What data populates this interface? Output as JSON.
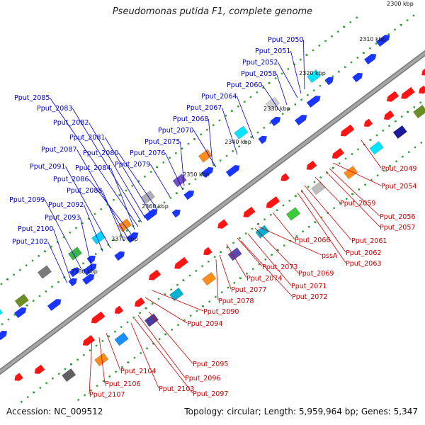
{
  "title": "Pseudomonas putida F1, complete genome",
  "accession": "Accession: NC_009512",
  "summary": "Topology: circular; Length: 5,959,964 bp; Genes: 5,347",
  "colors": {
    "forward": "#0000cc",
    "reverse": "#cc0000",
    "backbone": "#a6a6a6",
    "tick": "#2a8a2a",
    "dot": "#39a339"
  },
  "ticks": [
    "2300 kbp",
    "2310 kbp",
    "2320 kbp",
    "2330 kbp",
    "2340 kbp",
    "2350 kbp",
    "2360 kbp",
    "2370 kbp",
    "2380 kbp"
  ],
  "top_labels": [
    "Pput_2050",
    "Pput_2051",
    "Pput_2052",
    "Pput_2058",
    "Pput_2060",
    "Pput_2064",
    "Pput_2067",
    "Pput_2068",
    "Pput_2070",
    "Pput_2075",
    "Pput_2076",
    "Pput_2079",
    "Pput_2080",
    "Pput_2081",
    "Pput_2082",
    "Pput_2083",
    "Pput_2085",
    "Pput_2084",
    "Pput_2086",
    "Pput_2087",
    "Pput_2088",
    "Pput_2091",
    "Pput_2092",
    "Pput_2093",
    "Pput_2099",
    "Pput_2100",
    "Pput_2102"
  ],
  "bottom_labels": [
    "Pput_2049",
    "Pput_2054",
    "Pput_2056",
    "Pput_2057",
    "Pput_2059",
    "Pput_2061",
    "Pput_2062",
    "Pput_2063",
    "Pput_2066",
    "pssA",
    "Pput_2069",
    "Pput_2071",
    "Pput_2072",
    "Pput_2073",
    "Pput_2074",
    "Pput_2077",
    "Pput_2078",
    "Pput_2090",
    "Pput_2094",
    "Pput_2095",
    "Pput_2096",
    "Pput_2097",
    "Pput_2103",
    "Pput_2104",
    "Pput_2106",
    "Pput_2107"
  ]
}
